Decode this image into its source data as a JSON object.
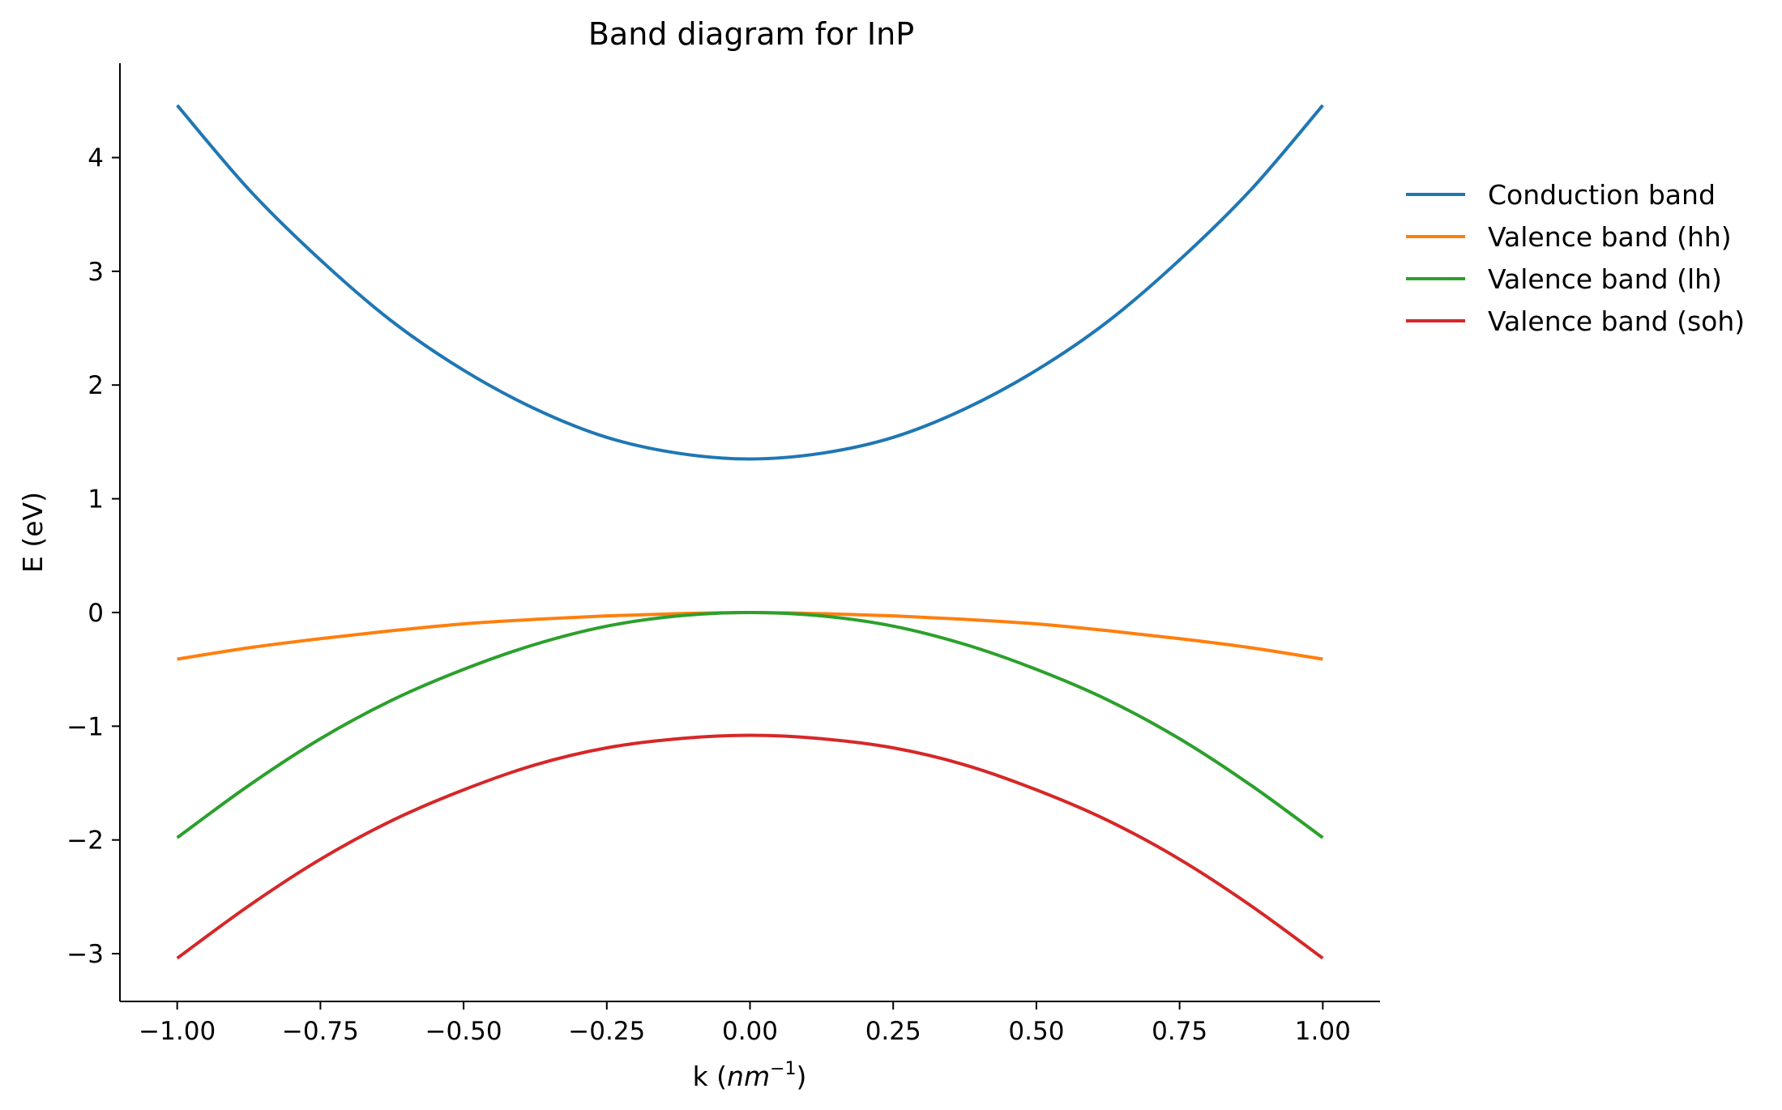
{
  "chart_data": {
    "type": "line",
    "title": "Band diagram for InP",
    "xlabel": "k (nm⁻¹)",
    "ylabel": "E (eV)",
    "xlim": [
      -1.1,
      1.1
    ],
    "ylim": [
      -3.42,
      4.83
    ],
    "grid": false,
    "legend_position": "outside-right",
    "x_ticks": [
      -1.0,
      -0.75,
      -0.5,
      -0.25,
      0.0,
      0.25,
      0.5,
      0.75,
      1.0
    ],
    "x_tick_labels": [
      "−1.00",
      "−0.75",
      "−0.50",
      "−0.25",
      "0.00",
      "0.25",
      "0.50",
      "0.75",
      "1.00"
    ],
    "y_ticks": [
      -3,
      -2,
      -1,
      0,
      1,
      2,
      3,
      4
    ],
    "y_tick_labels": [
      "−3",
      "−2",
      "−1",
      "0",
      "1",
      "2",
      "3",
      "4"
    ],
    "x": [
      -1.0,
      -0.875,
      -0.75,
      -0.625,
      -0.5,
      -0.375,
      -0.25,
      -0.125,
      0.0,
      0.125,
      0.25,
      0.375,
      0.5,
      0.625,
      0.75,
      0.875,
      1.0
    ],
    "series": [
      {
        "name": "Conduction band",
        "color": "#1f77b4",
        "values": [
          4.46,
          3.72,
          3.1,
          2.56,
          2.13,
          1.79,
          1.54,
          1.4,
          1.35,
          1.4,
          1.54,
          1.79,
          2.13,
          2.56,
          3.1,
          3.72,
          4.46
        ]
      },
      {
        "name": "Valence band (hh)",
        "color": "#ff7f0e",
        "values": [
          -0.41,
          -0.31,
          -0.23,
          -0.16,
          -0.1,
          -0.06,
          -0.03,
          -0.01,
          0.0,
          -0.01,
          -0.03,
          -0.06,
          -0.1,
          -0.16,
          -0.23,
          -0.31,
          -0.41
        ]
      },
      {
        "name": "Valence band (lh)",
        "color": "#2ca02c",
        "values": [
          -1.98,
          -1.52,
          -1.11,
          -0.77,
          -0.5,
          -0.28,
          -0.12,
          -0.03,
          0.0,
          -0.03,
          -0.12,
          -0.28,
          -0.5,
          -0.77,
          -1.11,
          -1.52,
          -1.98
        ]
      },
      {
        "name": "Valence band (soh)",
        "color": "#d62728",
        "values": [
          -3.04,
          -2.58,
          -2.17,
          -1.83,
          -1.56,
          -1.34,
          -1.19,
          -1.11,
          -1.08,
          -1.11,
          -1.19,
          -1.34,
          -1.56,
          -1.83,
          -2.17,
          -2.58,
          -3.04
        ]
      }
    ]
  }
}
